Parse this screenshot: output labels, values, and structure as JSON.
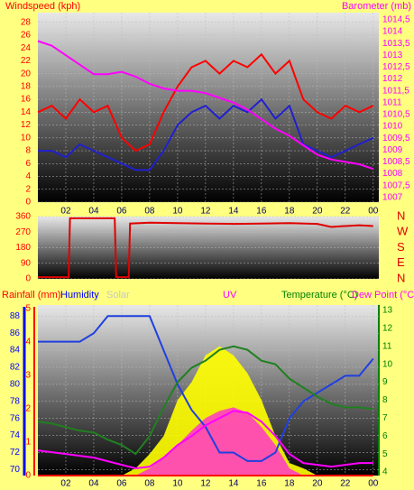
{
  "chart_data": [
    {
      "type": "line",
      "y_label": "Windspeed (kph)",
      "y2_label": "Barometer (mb)",
      "x": [
        0,
        1,
        2,
        3,
        4,
        5,
        6,
        7,
        8,
        9,
        10,
        11,
        12,
        13,
        14,
        15,
        16,
        17,
        18,
        19,
        20,
        21,
        22,
        23,
        24
      ],
      "xlim": [
        0,
        24.4
      ],
      "xticks": [
        {
          "value": 2,
          "label": "02"
        },
        {
          "value": 4,
          "label": "04"
        },
        {
          "value": 6,
          "label": "06"
        },
        {
          "value": 8,
          "label": "08"
        },
        10,
        12,
        14,
        16,
        18,
        20,
        22,
        {
          "value": 24,
          "label": "00"
        }
      ],
      "ylim": [
        0,
        29.5
      ],
      "yticks": [
        0,
        2,
        4,
        6,
        8,
        10,
        12,
        14,
        16,
        18,
        20,
        22,
        24,
        26,
        28
      ],
      "y2lim": [
        1006.8,
        1014.8
      ],
      "y2ticks": [
        1007,
        {
          "value": 1007.5,
          "label": "1007,5"
        },
        1008,
        {
          "value": 1008.5,
          "label": "1008,5"
        },
        1009,
        {
          "value": 1009.5,
          "label": "1009,5"
        },
        1010,
        {
          "value": 1010.5,
          "label": "1010,5"
        },
        1011,
        {
          "value": 1011.5,
          "label": "1011,5"
        },
        1012,
        {
          "value": 1012.5,
          "label": "1012,5"
        },
        1013,
        {
          "value": 1013.5,
          "label": "1013,5"
        },
        1014,
        {
          "value": 1014.5,
          "label": "1014,5"
        }
      ],
      "grid": true,
      "series": [
        {
          "color": "#ff0000",
          "values": [
            14,
            15,
            13,
            16,
            14,
            15,
            10,
            8,
            9,
            14,
            18,
            21,
            22,
            20,
            22,
            21,
            23,
            20,
            22,
            16,
            14,
            13,
            15,
            14,
            15
          ]
        },
        {
          "color": "#2020d0",
          "values": [
            8,
            8,
            7,
            9,
            8,
            7,
            6,
            5,
            5,
            8,
            12,
            14,
            15,
            13,
            15,
            14,
            16,
            13,
            15,
            9,
            8,
            7,
            8,
            9,
            10
          ]
        },
        {
          "color": "#ff00ff",
          "axis": "y2",
          "values": [
            1013.6,
            1013.4,
            1013,
            1012.6,
            1012.2,
            1012.2,
            1012.3,
            1012.1,
            1011.8,
            1011.6,
            1011.5,
            1011.5,
            1011.4,
            1011.2,
            1011,
            1010.7,
            1010.3,
            1009.9,
            1009.6,
            1009.2,
            1008.8,
            1008.6,
            1008.5,
            1008.4,
            1008.2
          ]
        }
      ]
    },
    {
      "type": "line",
      "x": [
        0,
        2.2,
        2.3,
        5.5,
        5.6,
        6.5,
        6.6,
        8,
        10,
        12,
        14,
        16,
        18,
        20,
        21,
        22,
        23,
        24
      ],
      "xlim": [
        0,
        24.4
      ],
      "ylim": [
        0,
        360
      ],
      "yticks": [
        0,
        90,
        180,
        270,
        360
      ],
      "y2lim": [
        0,
        360
      ],
      "y2ticks": [
        {
          "value": 360,
          "label": "N"
        },
        {
          "value": 270,
          "label": "W"
        },
        {
          "value": 180,
          "label": "S"
        },
        {
          "value": 90,
          "label": "E"
        },
        {
          "value": 0,
          "label": "N"
        }
      ],
      "grid": true,
      "series": [
        {
          "color": "#e00000",
          "values": [
            10,
            10,
            350,
            350,
            10,
            10,
            320,
            325,
            322,
            320,
            318,
            320,
            322,
            318,
            300,
            305,
            310,
            305
          ]
        }
      ]
    },
    {
      "type": "line",
      "rain_label": "Rainfall (mm)",
      "humidity_label": "Humidity",
      "solar_label": "Solar",
      "uv_label": "UV",
      "temperature_label": "Temperature (°C)",
      "dewpoint_label": "Dew Point (°C",
      "x": [
        0,
        1,
        2,
        3,
        4,
        5,
        6,
        7,
        8,
        9,
        10,
        11,
        12,
        13,
        14,
        15,
        16,
        17,
        18,
        19,
        20,
        21,
        22,
        23,
        24
      ],
      "xlim": [
        0,
        24.4
      ],
      "xticks": [
        {
          "value": 2,
          "label": "02"
        },
        {
          "value": 4,
          "label": "04"
        },
        {
          "value": 6,
          "label": "06"
        },
        {
          "value": 8,
          "label": "08"
        },
        10,
        12,
        14,
        16,
        18,
        20,
        22,
        {
          "value": 24,
          "label": "00"
        }
      ],
      "ylim": [
        69.3,
        89.3
      ],
      "yticks": [
        70,
        72,
        74,
        76,
        78,
        80,
        82,
        84,
        86,
        88
      ],
      "y2lim": [
        3.8,
        13.3
      ],
      "y2ticks": [
        4,
        5,
        6,
        7,
        8,
        9,
        10,
        11,
        12,
        13
      ],
      "y3lim": [
        0,
        5.1
      ],
      "y3ticks": [
        0,
        1,
        2,
        3,
        4,
        5
      ],
      "grid": true,
      "series": [
        {
          "color": "#ffff00",
          "axis": "y2",
          "area": true,
          "values": [
            3.8,
            3.8,
            3.8,
            3.8,
            3.8,
            3.8,
            3.8,
            4.2,
            5,
            6,
            8,
            9,
            10.5,
            11,
            10.5,
            9.5,
            8,
            6,
            4.5,
            4.2,
            3.8,
            3.8,
            3.8,
            3.8,
            3.8
          ]
        },
        {
          "color": "#ff40c0",
          "axis": "y2",
          "area": true,
          "values": [
            3.8,
            3.8,
            3.8,
            3.8,
            3.8,
            3.8,
            3.8,
            3.8,
            4.2,
            4.8,
            5.5,
            6.3,
            7,
            7.4,
            7.6,
            7.3,
            6.5,
            5.5,
            4.2,
            3.8,
            3.8,
            3.8,
            3.8,
            3.8,
            3.8
          ]
        },
        {
          "color": "#2040e0",
          "values": [
            85,
            85,
            85,
            85,
            86,
            88,
            88,
            88,
            88,
            84,
            80,
            77,
            75,
            72,
            72,
            71,
            71,
            72,
            76,
            78,
            79,
            80,
            81,
            81,
            83
          ]
        },
        {
          "color": "#208020",
          "axis": "y2",
          "values": [
            6.8,
            6.7,
            6.5,
            6.3,
            6.2,
            5.8,
            5.5,
            5,
            6,
            7.6,
            9,
            9.8,
            10.2,
            10.8,
            11,
            10.8,
            10.2,
            10,
            9.2,
            8.7,
            8.2,
            7.8,
            7.6,
            7.6,
            7.5
          ]
        },
        {
          "color": "#ff00ff",
          "axis": "y2",
          "values": [
            5.2,
            5.1,
            5,
            4.9,
            4.8,
            4.6,
            4.4,
            4.2,
            4.3,
            4.8,
            5.5,
            6,
            6.6,
            7,
            7.4,
            7.3,
            6.8,
            6,
            5,
            4.5,
            4.4,
            4.3,
            4.4,
            4.5,
            4.5
          ]
        },
        {
          "color": "#ff0000",
          "axis": "y3",
          "values": [
            0,
            0,
            0,
            0,
            0,
            0,
            0,
            0,
            0,
            0,
            0,
            0,
            0,
            0,
            0,
            0,
            0,
            0,
            0,
            0,
            0,
            0,
            0,
            0,
            0
          ]
        }
      ]
    }
  ]
}
